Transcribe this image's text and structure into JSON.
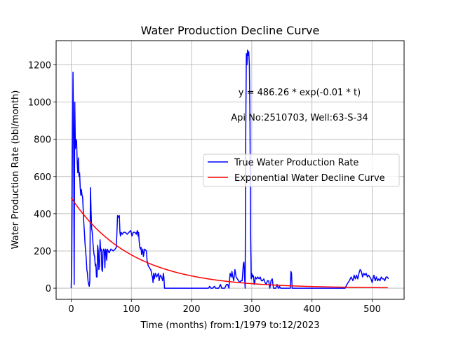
{
  "chart_data": {
    "type": "line",
    "title": "Water Production Decline Curve",
    "xlabel": "Time (months) from:1/1979 to:12/2023",
    "ylabel": "Water Production Rate (bbl/month)",
    "xlim": [
      -25,
      553
    ],
    "ylim": [
      -60,
      1330
    ],
    "xticks": [
      0,
      100,
      200,
      300,
      400,
      500
    ],
    "yticks": [
      0,
      200,
      400,
      600,
      800,
      1000,
      1200
    ],
    "grid": true,
    "legend_position": "center-right",
    "annotations": [
      "y = 486.26 * exp(-0.01 * t)",
      "Api No:2510703, Well:63-S-34"
    ],
    "series": [
      {
        "name": "True Water Production Rate",
        "color": "#0000ff",
        "points": [
          [
            0,
            0
          ],
          [
            1,
            150
          ],
          [
            2,
            700
          ],
          [
            3,
            1160
          ],
          [
            4,
            850
          ],
          [
            5,
            20
          ],
          [
            6,
            1000
          ],
          [
            7,
            750
          ],
          [
            8,
            800
          ],
          [
            9,
            790
          ],
          [
            10,
            680
          ],
          [
            11,
            620
          ],
          [
            12,
            700
          ],
          [
            13,
            600
          ],
          [
            14,
            620
          ],
          [
            15,
            540
          ],
          [
            16,
            500
          ],
          [
            17,
            530
          ],
          [
            18,
            500
          ],
          [
            19,
            490
          ],
          [
            20,
            420
          ],
          [
            21,
            350
          ],
          [
            22,
            300
          ],
          [
            23,
            240
          ],
          [
            24,
            200
          ],
          [
            25,
            160
          ],
          [
            26,
            100
          ],
          [
            27,
            80
          ],
          [
            28,
            40
          ],
          [
            29,
            20
          ],
          [
            30,
            10
          ],
          [
            31,
            40
          ],
          [
            32,
            540
          ],
          [
            33,
            420
          ],
          [
            34,
            320
          ],
          [
            35,
            300
          ],
          [
            36,
            250
          ],
          [
            37,
            210
          ],
          [
            38,
            180
          ],
          [
            39,
            170
          ],
          [
            40,
            120
          ],
          [
            41,
            130
          ],
          [
            42,
            60
          ],
          [
            43,
            60
          ],
          [
            44,
            230
          ],
          [
            45,
            200
          ],
          [
            46,
            100
          ],
          [
            47,
            120
          ],
          [
            48,
            260
          ],
          [
            49,
            200
          ],
          [
            50,
            210
          ],
          [
            51,
            100
          ],
          [
            52,
            90
          ],
          [
            53,
            200
          ],
          [
            54,
            210
          ],
          [
            55,
            200
          ],
          [
            56,
            110
          ],
          [
            57,
            210
          ],
          [
            58,
            200
          ],
          [
            59,
            150
          ],
          [
            60,
            210
          ],
          [
            63,
            190
          ],
          [
            66,
            210
          ],
          [
            70,
            200
          ],
          [
            73,
            210
          ],
          [
            75,
            220
          ],
          [
            76,
            300
          ],
          [
            77,
            390
          ],
          [
            79,
            380
          ],
          [
            80,
            390
          ],
          [
            81,
            300
          ],
          [
            82,
            280
          ],
          [
            83,
            300
          ],
          [
            85,
            290
          ],
          [
            87,
            300
          ],
          [
            90,
            300
          ],
          [
            93,
            290
          ],
          [
            96,
            300
          ],
          [
            99,
            310
          ],
          [
            101,
            280
          ],
          [
            103,
            300
          ],
          [
            106,
            300
          ],
          [
            108,
            290
          ],
          [
            110,
            310
          ],
          [
            111,
            280
          ],
          [
            112,
            300
          ],
          [
            113,
            250
          ],
          [
            114,
            220
          ],
          [
            115,
            210
          ],
          [
            116,
            220
          ],
          [
            117,
            180
          ],
          [
            118,
            200
          ],
          [
            119,
            210
          ],
          [
            120,
            170
          ],
          [
            122,
            210
          ],
          [
            125,
            200
          ],
          [
            126,
            150
          ],
          [
            128,
            120
          ],
          [
            130,
            110
          ],
          [
            132,
            100
          ],
          [
            133,
            90
          ],
          [
            134,
            70
          ],
          [
            135,
            60
          ],
          [
            136,
            30
          ],
          [
            137,
            80
          ],
          [
            138,
            50
          ],
          [
            140,
            80
          ],
          [
            142,
            60
          ],
          [
            145,
            80
          ],
          [
            146,
            40
          ],
          [
            148,
            70
          ],
          [
            150,
            60
          ],
          [
            152,
            40
          ],
          [
            153,
            80
          ],
          [
            154,
            60
          ],
          [
            155,
            0
          ],
          [
            165,
            0
          ],
          [
            180,
            0
          ],
          [
            200,
            0
          ],
          [
            220,
            0
          ],
          [
            228,
            0
          ],
          [
            230,
            10
          ],
          [
            232,
            0
          ],
          [
            235,
            0
          ],
          [
            238,
            10
          ],
          [
            240,
            0
          ],
          [
            245,
            0
          ],
          [
            248,
            20
          ],
          [
            250,
            0
          ],
          [
            255,
            0
          ],
          [
            258,
            20
          ],
          [
            260,
            20
          ],
          [
            262,
            0
          ],
          [
            263,
            40
          ],
          [
            264,
            80
          ],
          [
            266,
            60
          ],
          [
            267,
            90
          ],
          [
            268,
            70
          ],
          [
            270,
            40
          ],
          [
            272,
            100
          ],
          [
            274,
            60
          ],
          [
            276,
            50
          ],
          [
            278,
            40
          ],
          [
            280,
            30
          ],
          [
            282,
            40
          ],
          [
            284,
            40
          ],
          [
            286,
            130
          ],
          [
            287,
            140
          ],
          [
            288,
            60
          ],
          [
            289,
            0
          ],
          [
            290,
            850
          ],
          [
            291,
            1260
          ],
          [
            292,
            1200
          ],
          [
            293,
            1280
          ],
          [
            294,
            1250
          ],
          [
            295,
            1270
          ],
          [
            296,
            1200
          ],
          [
            297,
            900
          ],
          [
            298,
            300
          ],
          [
            299,
            50
          ],
          [
            300,
            80
          ],
          [
            301,
            60
          ],
          [
            302,
            70
          ],
          [
            303,
            60
          ],
          [
            304,
            20
          ],
          [
            305,
            30
          ],
          [
            306,
            60
          ],
          [
            308,
            50
          ],
          [
            310,
            60
          ],
          [
            312,
            50
          ],
          [
            314,
            60
          ],
          [
            316,
            40
          ],
          [
            318,
            40
          ],
          [
            320,
            50
          ],
          [
            322,
            30
          ],
          [
            324,
            20
          ],
          [
            326,
            40
          ],
          [
            328,
            40
          ],
          [
            330,
            0
          ],
          [
            332,
            40
          ],
          [
            334,
            50
          ],
          [
            336,
            0
          ],
          [
            338,
            0
          ],
          [
            340,
            0
          ],
          [
            342,
            20
          ],
          [
            344,
            0
          ],
          [
            345,
            0
          ],
          [
            346,
            10
          ],
          [
            348,
            0
          ],
          [
            350,
            0
          ],
          [
            355,
            0
          ],
          [
            360,
            0
          ],
          [
            364,
            0
          ],
          [
            365,
            90
          ],
          [
            366,
            80
          ],
          [
            367,
            0
          ],
          [
            375,
            0
          ],
          [
            390,
            0
          ],
          [
            410,
            0
          ],
          [
            430,
            0
          ],
          [
            450,
            0
          ],
          [
            455,
            0
          ],
          [
            458,
            20
          ],
          [
            462,
            40
          ],
          [
            465,
            60
          ],
          [
            468,
            40
          ],
          [
            470,
            70
          ],
          [
            472,
            50
          ],
          [
            474,
            70
          ],
          [
            476,
            50
          ],
          [
            478,
            80
          ],
          [
            480,
            100
          ],
          [
            482,
            90
          ],
          [
            484,
            60
          ],
          [
            486,
            80
          ],
          [
            488,
            70
          ],
          [
            490,
            80
          ],
          [
            492,
            60
          ],
          [
            494,
            70
          ],
          [
            496,
            60
          ],
          [
            498,
            50
          ],
          [
            500,
            30
          ],
          [
            502,
            60
          ],
          [
            503,
            70
          ],
          [
            505,
            40
          ],
          [
            507,
            60
          ],
          [
            509,
            40
          ],
          [
            511,
            50
          ],
          [
            513,
            40
          ],
          [
            515,
            60
          ],
          [
            517,
            50
          ],
          [
            519,
            50
          ],
          [
            521,
            40
          ],
          [
            523,
            60
          ],
          [
            525,
            60
          ],
          [
            527,
            50
          ]
        ]
      },
      {
        "name": "Exponential Water Decline Curve",
        "color": "#ff0000",
        "equation": {
          "a": 486.26,
          "b": -0.01,
          "t_start": 0,
          "t_end": 527
        }
      }
    ]
  }
}
